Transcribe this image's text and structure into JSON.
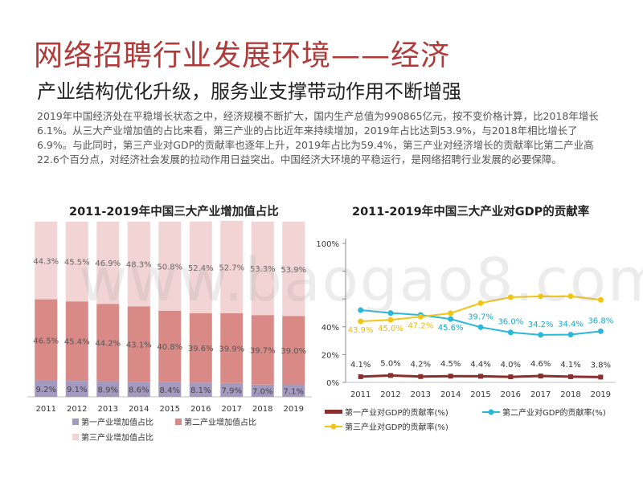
{
  "header": {
    "title": "网络招聘行业发展环境——经济",
    "subtitle": "产业结构优化升级，服务业支撑带动作用不断增强",
    "description": "2019年中国经济处在平稳增长状态之中，经济规模不断扩大，国内生产总值为990865亿元，按不变价格计算，比2018年增长6.1%。从三大产业增加值的占比来看，第三产业的占比近年来持续增加，2019年占比达到53.9%，与2018年相比增长了6.9%。与此同时，第三产业对GDP的贡献率也逐年上升，2019年占比为59.4%，第三产业对经济增长的贡献率比第二产业高22.6个百分点，对经济社会发展的拉动作用日益突出。中国经济大环境的平稳运行，是网络招聘行业发展的必要保障。"
  },
  "watermark": "www.baogao8.com",
  "colors": {
    "title": "#b03a3a",
    "primary": "#a49ac0",
    "secondary": "#d98a86",
    "tertiary": "#f1d4d3",
    "line_primary": "#8b2e2e",
    "line_secondary": "#29b8d8",
    "line_tertiary": "#f2c515",
    "tertiary_label": "#f0b800",
    "secondary_label": "#1aa6c8"
  },
  "chart_data": [
    {
      "type": "bar",
      "stacked": true,
      "title": "2011-2019年中国三大产业增加值占比",
      "categories": [
        "2011",
        "2012",
        "2013",
        "2014",
        "2015",
        "2016",
        "2017",
        "2018",
        "2019"
      ],
      "series": [
        {
          "name": "第一产业增加值占比",
          "values": [
            9.2,
            9.1,
            8.9,
            8.6,
            8.4,
            8.1,
            7.9,
            7.0,
            7.1
          ],
          "labels": [
            "9.2%",
            "9.1%",
            "8.9%",
            "8.6%",
            "8.4%",
            "8.1%",
            "7.9%",
            "7.0%",
            "7.1%"
          ]
        },
        {
          "name": "第二产业增加值占比",
          "values": [
            46.5,
            45.4,
            44.2,
            43.1,
            40.8,
            39.6,
            39.9,
            39.7,
            39.0
          ],
          "labels": [
            "46.5%",
            "45.4%",
            "44.2%",
            "43.1%",
            "40.8%",
            "39.6%",
            "39.9%",
            "39.7%",
            "39.0%"
          ]
        },
        {
          "name": "第三产业增加值占比",
          "values": [
            44.3,
            45.5,
            46.9,
            48.3,
            50.8,
            52.4,
            52.7,
            53.3,
            53.9
          ],
          "labels": [
            "44.3%",
            "45.5%",
            "46.9%",
            "48.3%",
            "50.8%",
            "52.4%",
            "52.7%",
            "53.3%",
            "53.9%"
          ]
        }
      ],
      "ylim": [
        0,
        100
      ],
      "legend": "bottom"
    },
    {
      "type": "line",
      "title": "2011-2019年中国三大产业对GDP的贡献率",
      "categories": [
        "2011",
        "2012",
        "2013",
        "2014",
        "2015",
        "2016",
        "2017",
        "2018",
        "2019"
      ],
      "series": [
        {
          "name": "第一产业对GDP的贡献率(%)",
          "values": [
            4.1,
            5.0,
            4.2,
            4.5,
            4.4,
            4.0,
            4.6,
            4.1,
            3.8
          ],
          "labels": [
            "4.1%",
            "5.0%",
            "4.2%",
            "4.5%",
            "4.4%",
            "4.0%",
            "4.6%",
            "4.1%",
            "3.8%"
          ]
        },
        {
          "name": "第二产业对GDP的贡献率(%)",
          "values": [
            52.0,
            49.9,
            48.5,
            45.6,
            39.7,
            36.0,
            34.2,
            34.4,
            36.8
          ],
          "labels": [
            "",
            "",
            "",
            "45.6%",
            "39.7%",
            "36.0%",
            "34.2%",
            "34.4%",
            "36.8%"
          ]
        },
        {
          "name": "第三产业对GDP的贡献率(%)",
          "values": [
            43.9,
            45.0,
            47.2,
            49.8,
            57.0,
            61.3,
            61.9,
            62.0,
            59.4
          ],
          "labels": [
            "43.9%",
            "45.0%",
            "47.2%",
            "",
            "",
            "",
            "",
            "",
            ""
          ]
        }
      ],
      "yticks": [
        "0%",
        "20%",
        "40%",
        "",
        "",
        "100%"
      ],
      "ylim": [
        0,
        100
      ],
      "legend": "bottom"
    }
  ]
}
